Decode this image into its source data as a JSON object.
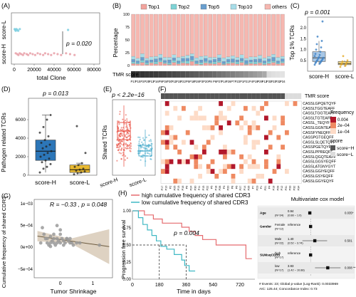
{
  "panel_labels": {
    "a": "(A)",
    "b": "(B)",
    "c": "(C)",
    "d": "(D)",
    "e": "(E)",
    "f": "(F)",
    "g": "(G)",
    "h": "(H)"
  },
  "colors": {
    "score_h": "#e8a0a8",
    "score_l": "#7ccfe0",
    "top1": "#f2a39d",
    "top2": "#7fd3d6",
    "top5": "#6a9fcf",
    "top10": "#a7dde8",
    "others": "#f6b7b0",
    "box_h_d": "#2c76b8",
    "box_l_d": "#e8b931",
    "box_h_c": "#a8c7e6",
    "box_l_c": "#f2d98a",
    "heat_high": "#b2182b",
    "heat_mid": "#ef8a62",
    "heat_low": "#fddbc7"
  },
  "chart_data": [
    {
      "panel": "A",
      "type": "scatter",
      "categories": [
        "score-H",
        "score-L"
      ],
      "xlabel": "total Clone",
      "xticks": [
        "0",
        "20000",
        "40000",
        "60000",
        "80000"
      ],
      "p_text": "p = 0.020",
      "series": [
        {
          "name": "score-H",
          "values": [
            1500,
            3000,
            4200,
            5500,
            7000,
            8800,
            10000,
            12500,
            14000,
            16000,
            18500,
            21000,
            23500,
            26000,
            29000,
            31000,
            34000,
            37000,
            40000,
            43500,
            47000,
            52000,
            56000,
            60500
          ]
        },
        {
          "name": "score-L",
          "values": [
            400,
            900,
            1500,
            2200,
            3100,
            4000,
            5600,
            54000
          ]
        }
      ]
    },
    {
      "panel": "B",
      "type": "bar",
      "ylabel": "Percentage",
      "legend": [
        "Top1",
        "Top2",
        "Top5",
        "Top10",
        "others"
      ],
      "legend_position": "top",
      "yticks": [
        "0",
        "25",
        "50",
        "75",
        "100"
      ],
      "tmr_label": "TMR score",
      "categories": [
        "P17",
        "P10",
        "P2",
        "P25",
        "P13",
        "P16",
        "P9",
        "P24",
        "P30",
        "P11",
        "P15",
        "P22",
        "P5",
        "P18",
        "P28",
        "P3",
        "P20",
        "P8",
        "P6",
        "P27",
        "P14",
        "P26",
        "P7",
        "P23",
        "P1",
        "P21",
        "P4",
        "P19",
        "P29",
        "P12",
        "P31",
        "P33",
        "P32",
        "P34"
      ],
      "series": [
        {
          "name": "Top1",
          "values": [
            4,
            3,
            6,
            2,
            5,
            3,
            7,
            4,
            2,
            6,
            3,
            5,
            4,
            8,
            3,
            2,
            5,
            4,
            3,
            6,
            2,
            4,
            5,
            3,
            6,
            2,
            4,
            3,
            5,
            2,
            4,
            6,
            3,
            5
          ]
        },
        {
          "name": "Top2",
          "values": [
            3,
            2,
            4,
            3,
            2,
            4,
            3,
            2,
            3,
            4,
            2,
            3,
            5,
            3,
            2,
            4,
            3,
            2,
            4,
            3,
            2,
            3,
            2,
            4,
            3,
            2,
            3,
            4,
            2,
            3,
            4,
            3,
            2,
            3
          ]
        },
        {
          "name": "Top5",
          "values": [
            5,
            4,
            6,
            5,
            4,
            6,
            5,
            4,
            6,
            5,
            4,
            6,
            5,
            7,
            4,
            5,
            6,
            4,
            5,
            6,
            4,
            5,
            6,
            4,
            5,
            6,
            4,
            5,
            6,
            4,
            5,
            7,
            4,
            5
          ]
        },
        {
          "name": "Top10",
          "values": [
            6,
            5,
            7,
            4,
            6,
            5,
            7,
            6,
            5,
            6,
            7,
            4,
            6,
            5,
            6,
            7,
            5,
            6,
            4,
            6,
            7,
            5,
            6,
            5,
            7,
            4,
            6,
            5,
            7,
            6,
            5,
            6,
            7,
            5
          ]
        },
        {
          "name": "others",
          "values": [
            82,
            86,
            77,
            86,
            83,
            82,
            78,
            84,
            84,
            79,
            84,
            82,
            80,
            77,
            85,
            82,
            81,
            84,
            84,
            79,
            85,
            83,
            81,
            84,
            79,
            86,
            83,
            83,
            80,
            85,
            82,
            78,
            84,
            82
          ]
        }
      ],
      "tmr_score": [
        0.97,
        0.95,
        0.94,
        0.92,
        0.91,
        0.89,
        0.87,
        0.86,
        0.84,
        0.83,
        0.81,
        0.79,
        0.77,
        0.75,
        0.73,
        0.71,
        0.69,
        0.67,
        0.65,
        0.62,
        0.6,
        0.57,
        0.55,
        0.52,
        0.5,
        0.47,
        0.44,
        0.41,
        0.38,
        0.34,
        0.08,
        0.06,
        0.05,
        0.04
      ]
    },
    {
      "panel": "C",
      "type": "box",
      "ylabel": "Top 1% TCRs",
      "categories": [
        "score-H",
        "score-L"
      ],
      "p_text": "p = 0.001",
      "ylim": [
        0,
        2.5
      ],
      "yticks": [
        "0.5",
        "1.0",
        "1.5",
        "2.0"
      ],
      "series": [
        {
          "name": "score-H",
          "values": [
            0.3,
            0.35,
            0.38,
            0.4,
            0.42,
            0.45,
            0.48,
            0.5,
            0.52,
            0.55,
            0.6,
            0.62,
            0.65,
            0.7,
            0.75,
            0.8,
            0.9,
            1.0,
            1.1,
            1.25,
            1.4,
            1.6,
            2.3
          ]
        },
        {
          "name": "score-L",
          "values": [
            0.2,
            0.25,
            0.3,
            0.32,
            0.35,
            0.4,
            0.45,
            0.5,
            0.7
          ]
        }
      ]
    },
    {
      "panel": "D",
      "type": "box",
      "ylabel": "Pathogen related TCRs",
      "categories": [
        "score-H",
        "score-L"
      ],
      "p_text": "p = 0.013",
      "ylim": [
        0,
        8000
      ],
      "yticks": [
        "0",
        "2000",
        "4000",
        "6000"
      ],
      "series": [
        {
          "name": "score-H",
          "values": [
            300,
            700,
            900,
            1200,
            1400,
            1600,
            1800,
            2000,
            2200,
            2400,
            2600,
            2900,
            3100,
            3300,
            3500,
            3800,
            4200,
            4600,
            5200,
            6000,
            6500
          ]
        },
        {
          "name": "score-L",
          "values": [
            100,
            200,
            300,
            400,
            500,
            600,
            700,
            900,
            1100,
            1300,
            2400,
            5300
          ]
        }
      ]
    },
    {
      "panel": "E",
      "type": "box",
      "ylabel": "Shared TCRs",
      "categories": [
        "score-H",
        "score-L"
      ],
      "p_text": "p < 2.2e−16",
      "ylim": [
        0,
        1.0
      ],
      "series": [
        {
          "name": "score-H",
          "q1": 0.48,
          "median": 0.6,
          "q3": 0.72,
          "whisker_low": 0.1,
          "whisker_high": 0.96
        },
        {
          "name": "score-L",
          "q1": 0.25,
          "median": 0.32,
          "q3": 0.4,
          "whisker_low": 0.1,
          "whisker_high": 0.62
        }
      ]
    },
    {
      "panel": "F",
      "type": "heatmap",
      "tmr_label": "TMR score",
      "legend_title": "Frequency",
      "legend_ticks": [
        "0.004",
        "2e−04",
        "1e−04"
      ],
      "score_legend_title": "score",
      "score_legend": [
        "score−H",
        "score−L"
      ],
      "rows": [
        "CASSLGPQETQYF",
        "CASSLTGGTEAFF",
        "CASSLTGGTEAFF",
        "CASSLTGTEAFF",
        "CASSL_TEQYF",
        "CASSLGGNTEAFF",
        "CASSFYNEQFF",
        "CASSPGTGEQFF",
        "CASSLSLQETQYF",
        "CASSPGETQYF",
        "CASSLPPREQFF",
        "CASSLQGQTEAFF",
        "CASSLGGSYEQFF",
        "CASSLATGNYGYT",
        "CASSLGGIYEQFF",
        "CASSLGSYEQFF",
        "CASSLGGYEQYF"
      ]
    },
    {
      "panel": "G",
      "type": "scatter",
      "xlabel": "Tumor Shrinkage",
      "ylabel": "Cumulative frequency of shared CDR3",
      "annotation": "R = −0.33 , p = 0.048",
      "xticks": [
        "0",
        "1"
      ],
      "yticks": [
        "1e−03",
        "5e−04",
        "0e+00",
        "−5e−04"
      ],
      "xlim": [
        -0.8,
        1.6
      ],
      "ylim": [
        -0.0007,
        0.0011
      ],
      "x": [
        -0.55,
        -0.5,
        -0.45,
        -0.4,
        -0.35,
        -0.3,
        -0.3,
        -0.25,
        -0.2,
        -0.2,
        -0.15,
        -0.1,
        -0.1,
        -0.05,
        0,
        0,
        0.05,
        0.1,
        0.1,
        0.15,
        0.2,
        0.25,
        0.3,
        0.35,
        0.4,
        0.5,
        0.6,
        -0.6,
        -0.4,
        -0.2,
        0,
        0.2,
        1.2,
        -0.1,
        0.3,
        -0.3
      ],
      "y": [
        0.00045,
        0.0003,
        0.0002,
        0.0001,
        5e-05,
        0.0001,
        0.00025,
        0.00015,
        0.0003,
        0.0002,
        5e-05,
        0.0001,
        0.0002,
        0.00015,
        0.0003,
        0.0001,
        0.0002,
        5e-05,
        0.00015,
        0.0001,
        0.0002,
        0.00015,
        0.0002,
        0.0001,
        5e-05,
        0.0001,
        0.0001,
        0.0001,
        0.0002,
        0.0001,
        0.0004,
        0.0002,
        5e-05,
        0.0005,
        0.0001,
        2e-05
      ],
      "fit": {
        "slope": -0.00011,
        "intercept": 0.00018
      }
    },
    {
      "panel": "H",
      "type": "line",
      "legend": [
        "high cumulative frequency of shared CDR3",
        "low cumulative frequency of shared CDR3"
      ],
      "ylabel": "Progression free survival",
      "xlabel": "Time in days",
      "p_text": "p = 0.004",
      "xticks": [
        "0",
        "180",
        "360",
        "540",
        "720"
      ],
      "yticks": [
        "0.00",
        "0.25",
        "0.50",
        "0.75",
        "1.00"
      ],
      "xlim": [
        0,
        820
      ],
      "ylim": [
        0,
        1
      ],
      "series": [
        {
          "name": "high cumulative frequency of shared CDR3",
          "times": [
            0,
            80,
            140,
            200,
            260,
            330,
            380,
            420,
            470,
            560,
            700,
            760,
            800
          ],
          "values": [
            1,
            0.94,
            0.88,
            0.82,
            0.82,
            0.76,
            0.7,
            0.64,
            0.58,
            0.5,
            0.5,
            0.3,
            0.3
          ]
        },
        {
          "name": "low cumulative frequency of shared CDR3",
          "times": [
            0,
            40,
            70,
            100,
            130,
            160,
            190,
            230,
            280,
            330,
            350,
            380,
            420
          ],
          "values": [
            1,
            0.9,
            0.8,
            0.72,
            0.64,
            0.56,
            0.48,
            0.44,
            0.36,
            0.28,
            0.2,
            0.12,
            0.12
          ]
        }
      ],
      "median_lines": [
        180,
        360
      ]
    },
    {
      "panel": "forest",
      "type": "forest",
      "title": "Multivariate cox model",
      "rows": [
        {
          "variable": "Age",
          "n": "(N=34)",
          "hr": "0.94",
          "ci": "(0.88 − 1.0)",
          "p": "0.035*",
          "estimate": 0.94
        },
        {
          "variable": "Gender",
          "level": "Female",
          "n": "(N=12)",
          "hr": "reference",
          "ci": "",
          "p": "",
          "estimate": 1.0
        },
        {
          "variable": "",
          "level": "Male",
          "n": "(N=22)",
          "hr": "1.40",
          "ci": "(0.52 − 3.74)",
          "p": "0.501",
          "estimate": 1.4
        },
        {
          "variable": "SUMsqCDR3",
          "level": "high",
          "n": "(N=17)",
          "hr": "reference",
          "ci": "",
          "p": "",
          "estimate": 1.0
        },
        {
          "variable": "",
          "level": "low",
          "n": "(N=17)",
          "hr": "3.93",
          "ci": "(1.42 − 10.88)",
          "p": "0.008 **",
          "estimate": 3.93
        }
      ],
      "footer": [
        "# Events: 23; Global p-value (Log-Rank): 0.0033969",
        "AIC: 125.44; Concordance Index: 0.73"
      ]
    }
  ]
}
